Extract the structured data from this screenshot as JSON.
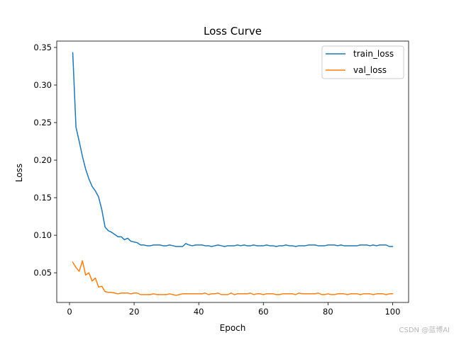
{
  "chart_data": {
    "type": "line",
    "title": "Loss Curve",
    "xlabel": "Epoch",
    "ylabel": "Loss",
    "xlim": [
      -3.95,
      104.95
    ],
    "ylim": [
      0.0105,
      0.3585
    ],
    "xticks": [
      0,
      20,
      40,
      60,
      80,
      100
    ],
    "xtick_labels": [
      "0",
      "20",
      "40",
      "60",
      "80",
      "100"
    ],
    "yticks": [
      0.05,
      0.1,
      0.15,
      0.2,
      0.25,
      0.3,
      0.35
    ],
    "ytick_labels": [
      "0.05",
      "0.10",
      "0.15",
      "0.20",
      "0.25",
      "0.30",
      "0.35"
    ],
    "grid": false,
    "legend_position": "upper right",
    "x": [
      1,
      2,
      3,
      4,
      5,
      6,
      7,
      8,
      9,
      10,
      11,
      12,
      13,
      14,
      15,
      16,
      17,
      18,
      19,
      20,
      21,
      22,
      23,
      24,
      25,
      26,
      27,
      28,
      29,
      30,
      31,
      32,
      33,
      34,
      35,
      36,
      37,
      38,
      39,
      40,
      41,
      42,
      43,
      44,
      45,
      46,
      47,
      48,
      49,
      50,
      51,
      52,
      53,
      54,
      55,
      56,
      57,
      58,
      59,
      60,
      61,
      62,
      63,
      64,
      65,
      66,
      67,
      68,
      69,
      70,
      71,
      72,
      73,
      74,
      75,
      76,
      77,
      78,
      79,
      80,
      81,
      82,
      83,
      84,
      85,
      86,
      87,
      88,
      89,
      90,
      91,
      92,
      93,
      94,
      95,
      96,
      97,
      98,
      99,
      100
    ],
    "series": [
      {
        "name": "train_loss",
        "color": "#1f77b4",
        "values": [
          0.343,
          0.244,
          0.225,
          0.205,
          0.188,
          0.175,
          0.165,
          0.159,
          0.151,
          0.134,
          0.111,
          0.106,
          0.104,
          0.101,
          0.098,
          0.098,
          0.094,
          0.096,
          0.092,
          0.091,
          0.09,
          0.087,
          0.087,
          0.086,
          0.086,
          0.087,
          0.087,
          0.087,
          0.086,
          0.086,
          0.087,
          0.086,
          0.085,
          0.085,
          0.085,
          0.089,
          0.087,
          0.086,
          0.087,
          0.087,
          0.087,
          0.086,
          0.086,
          0.085,
          0.086,
          0.087,
          0.086,
          0.085,
          0.086,
          0.086,
          0.086,
          0.087,
          0.086,
          0.087,
          0.086,
          0.086,
          0.087,
          0.086,
          0.086,
          0.086,
          0.087,
          0.086,
          0.086,
          0.085,
          0.086,
          0.086,
          0.087,
          0.086,
          0.086,
          0.085,
          0.086,
          0.086,
          0.086,
          0.087,
          0.087,
          0.087,
          0.086,
          0.086,
          0.086,
          0.087,
          0.087,
          0.087,
          0.086,
          0.087,
          0.086,
          0.086,
          0.086,
          0.086,
          0.086,
          0.087,
          0.087,
          0.087,
          0.086,
          0.087,
          0.086,
          0.087,
          0.087,
          0.087,
          0.085,
          0.085
        ]
      },
      {
        "name": "val_loss",
        "color": "#ff7f0e",
        "values": [
          0.064,
          0.057,
          0.052,
          0.066,
          0.047,
          0.05,
          0.039,
          0.043,
          0.031,
          0.032,
          0.025,
          0.024,
          0.024,
          0.023,
          0.022,
          0.023,
          0.023,
          0.023,
          0.022,
          0.023,
          0.023,
          0.021,
          0.021,
          0.021,
          0.021,
          0.022,
          0.021,
          0.021,
          0.021,
          0.021,
          0.022,
          0.021,
          0.02,
          0.021,
          0.022,
          0.022,
          0.022,
          0.022,
          0.022,
          0.022,
          0.022,
          0.023,
          0.021,
          0.022,
          0.022,
          0.023,
          0.021,
          0.021,
          0.021,
          0.023,
          0.021,
          0.022,
          0.022,
          0.022,
          0.022,
          0.023,
          0.021,
          0.022,
          0.022,
          0.021,
          0.022,
          0.022,
          0.022,
          0.021,
          0.021,
          0.022,
          0.022,
          0.022,
          0.022,
          0.021,
          0.023,
          0.022,
          0.022,
          0.022,
          0.022,
          0.022,
          0.023,
          0.021,
          0.021,
          0.022,
          0.021,
          0.021,
          0.022,
          0.022,
          0.022,
          0.021,
          0.022,
          0.022,
          0.022,
          0.021,
          0.022,
          0.022,
          0.022,
          0.021,
          0.022,
          0.022,
          0.022,
          0.021,
          0.022,
          0.022
        ]
      }
    ]
  },
  "watermark": "CSDN @蓝博AI"
}
